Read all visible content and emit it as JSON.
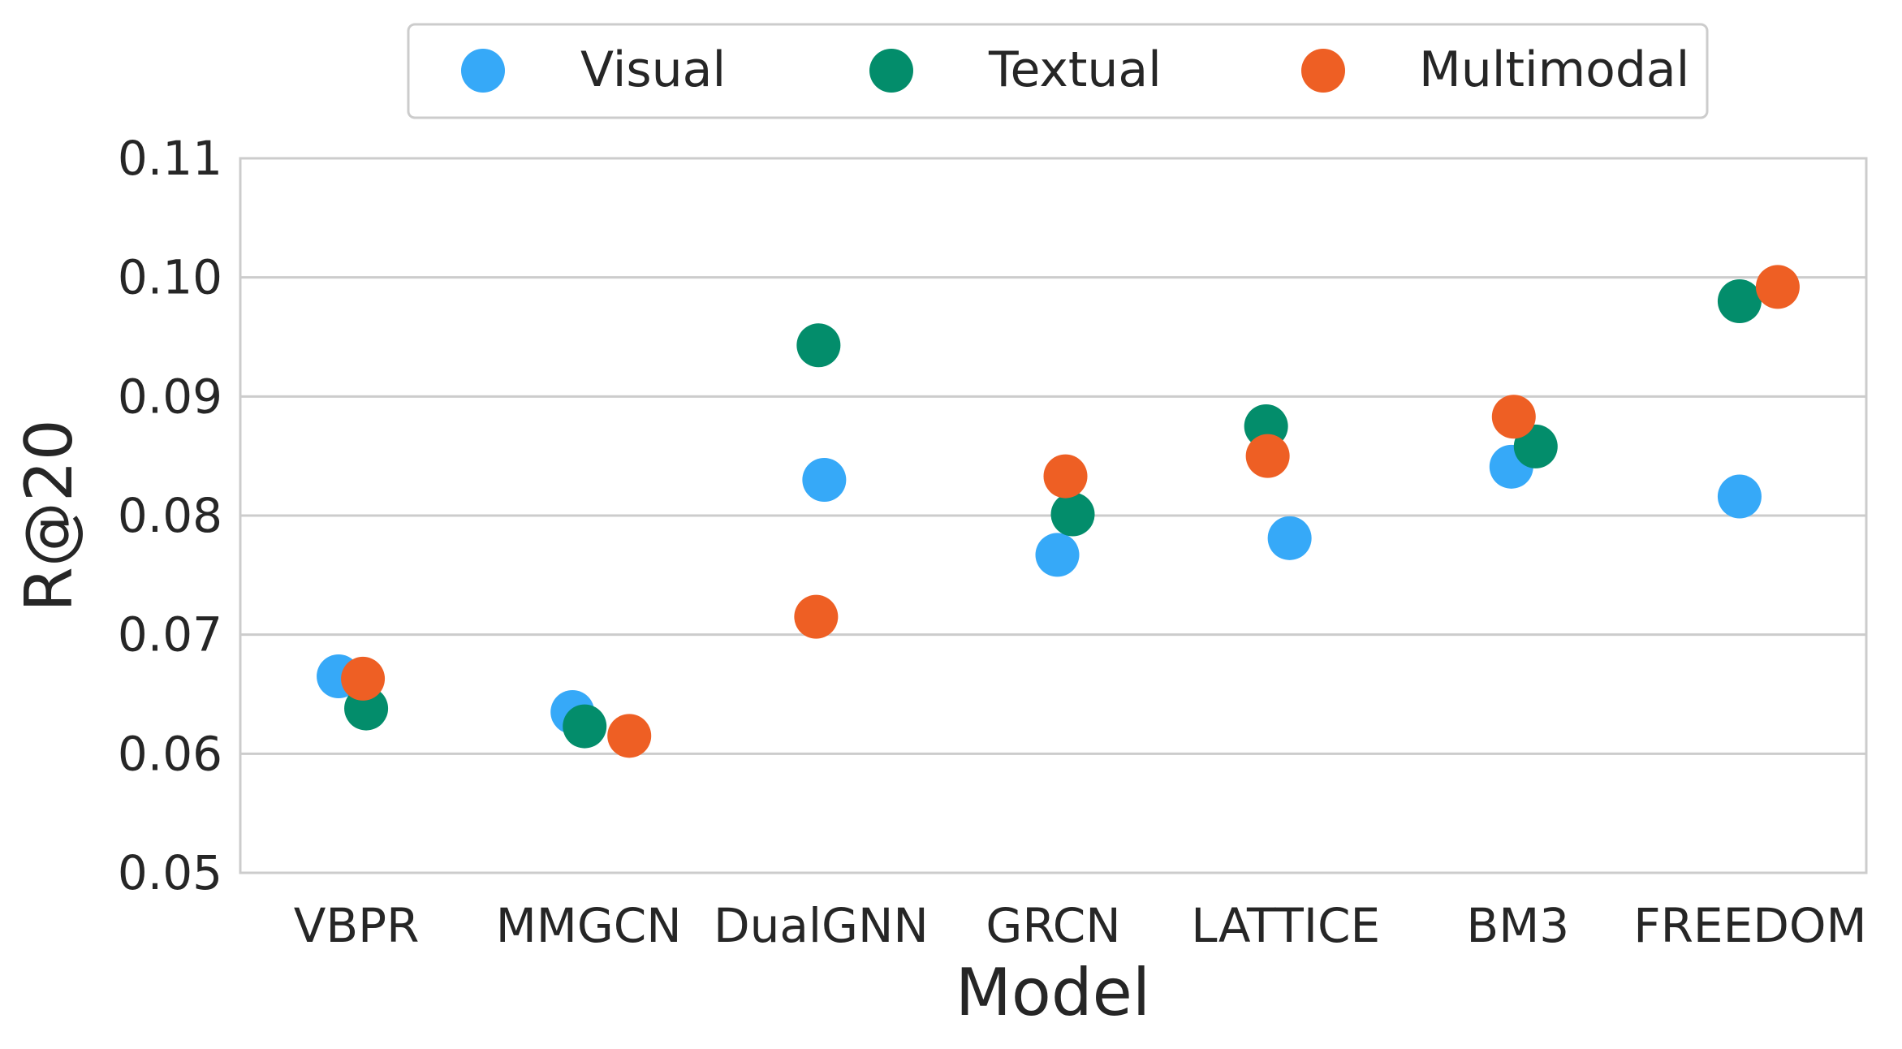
{
  "chart_data": {
    "type": "scatter",
    "title": "",
    "xlabel": "Model",
    "ylabel": "R@20",
    "categories": [
      "VBPR",
      "MMGCN",
      "DualGNN",
      "GRCN",
      "LATTICE",
      "BM3",
      "FREEDOM"
    ],
    "ylim": [
      0.05,
      0.11
    ],
    "yticks": [
      "0.05",
      "0.06",
      "0.07",
      "0.08",
      "0.09",
      "0.10",
      "0.11"
    ],
    "grid": "horizontal",
    "legend_position": "top-center",
    "series": [
      {
        "name": "Visual",
        "color": "#36a9f8",
        "values": [
          0.0665,
          0.0635,
          0.083,
          0.0767,
          0.0781,
          0.0841,
          0.0816
        ]
      },
      {
        "name": "Textual",
        "color": "#038d6b",
        "values": [
          0.0638,
          0.0623,
          0.0943,
          0.0801,
          0.0875,
          0.0858,
          0.098
        ]
      },
      {
        "name": "Multimodal",
        "color": "#ee5f24",
        "values": [
          0.0663,
          0.0615,
          0.0715,
          0.0833,
          0.085,
          0.0883,
          0.0992
        ]
      }
    ]
  }
}
